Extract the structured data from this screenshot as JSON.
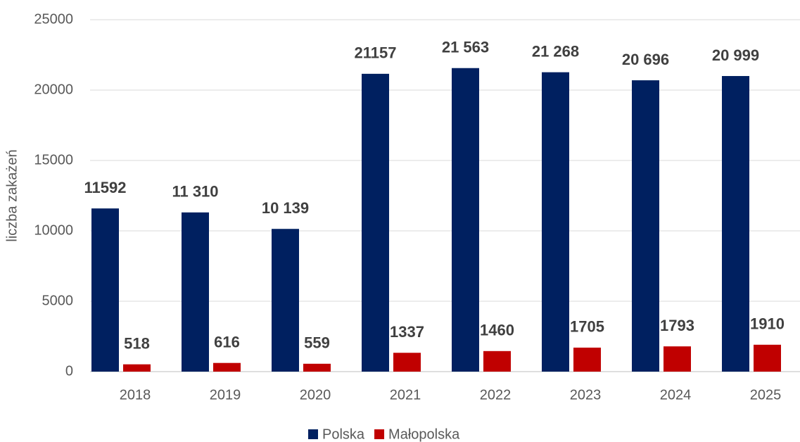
{
  "chart_data": {
    "type": "bar",
    "y_label": "liczba zakażeń",
    "categories": [
      "2018",
      "2019",
      "2020",
      "2021",
      "2022",
      "2023",
      "2024",
      "2025"
    ],
    "series": [
      {
        "name": "Polska",
        "color": "#002060",
        "values": [
          11592,
          11310,
          10139,
          21157,
          21563,
          21268,
          20696,
          20999
        ],
        "value_labels": [
          "11592",
          "11 310",
          "10 139",
          "21157",
          "21 563",
          "21 268",
          "20 696",
          "20 999"
        ]
      },
      {
        "name": "Małopolska",
        "color": "#c00000",
        "values": [
          518,
          616,
          559,
          1337,
          1460,
          1705,
          1793,
          1910
        ]
      }
    ],
    "ylim": [
      0,
      25000
    ],
    "yticks": [
      0,
      5000,
      10000,
      15000,
      20000,
      25000
    ],
    "grid": true,
    "legend": "bottom"
  }
}
